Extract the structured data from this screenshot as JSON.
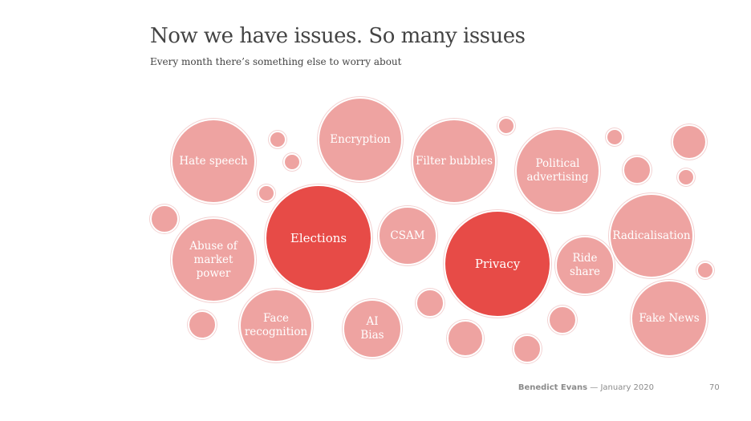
{
  "title": "Now we have issues. So many issues",
  "subtitle": "Every month there’s something else to worry about",
  "colors": {
    "light": "#eea3a1",
    "dark": "#e74b47"
  },
  "issues": [
    {
      "label": "Hate speech",
      "emphasis": false
    },
    {
      "label": "Encryption",
      "emphasis": false
    },
    {
      "label": "Filter bubbles",
      "emphasis": false
    },
    {
      "label": "Political\nadvertising",
      "emphasis": false
    },
    {
      "label": "Elections",
      "emphasis": true
    },
    {
      "label": "CSAM",
      "emphasis": false
    },
    {
      "label": "Privacy",
      "emphasis": true
    },
    {
      "label": "Radicalisation",
      "emphasis": false
    },
    {
      "label": "Abuse of\nmarket\npower",
      "emphasis": false
    },
    {
      "label": "Ride\nshare",
      "emphasis": false
    },
    {
      "label": "Face\nrecognition",
      "emphasis": false
    },
    {
      "label": "AI\nBias",
      "emphasis": false
    },
    {
      "label": "Fake News",
      "emphasis": false
    }
  ],
  "footer": {
    "author": "Benedict Evans",
    "date": "— January 2020",
    "page": "70"
  }
}
